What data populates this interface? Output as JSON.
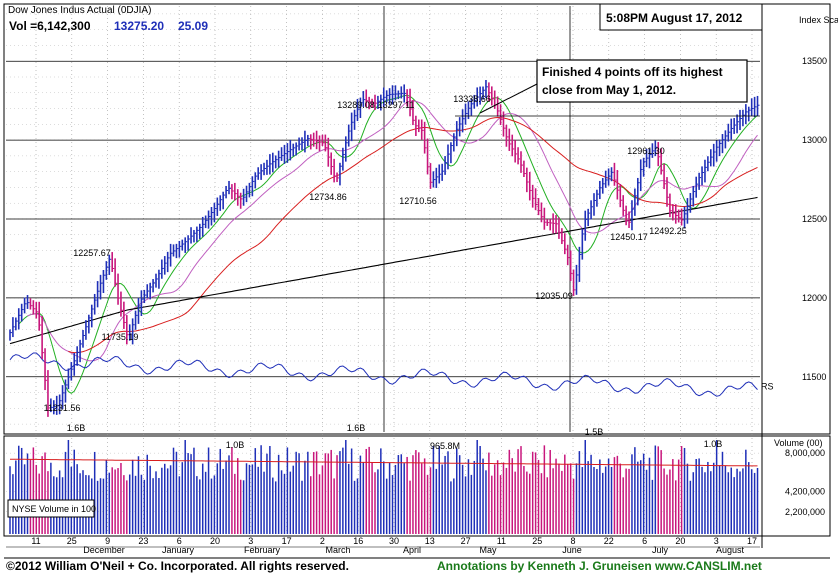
{
  "header": {
    "title": "Dow Jones Indus Actual  (0DJIA)",
    "volume_label": "Vol =6,142,300",
    "last_price": "13275.20",
    "change": "25.09",
    "timestamp": "5:08PM August 17, 2012"
  },
  "annotation": {
    "line1": "Finished 4 points off its highest",
    "line2": "close from May 1, 2012."
  },
  "footer": {
    "copyright": "©2012 William O'Neil + Co. Incorporated. All rights reserved.",
    "credit": "Annotations by Kenneth J. Gruneisen www.CANSLIM.net"
  },
  "colors": {
    "up": "#1f2fb8",
    "down": "#c8167c",
    "ma50": "#d81e1e",
    "ma200": "#000000",
    "ma10": "#22b022",
    "ma21": "#c060c0",
    "rs": "#1f2fb8",
    "credit": "#1a7a1a"
  },
  "chart_data": {
    "type": "bar",
    "title": "Dow Jones Indus Actual  (0DJIA)",
    "price_axis": {
      "label": "Index Scale",
      "ticks": [
        11500,
        12000,
        12500,
        13000,
        13500
      ],
      "tick_labels": [
        "11500",
        "12000",
        "12500",
        "13000",
        "13500"
      ],
      "range": [
        11150,
        13850
      ]
    },
    "x_axis": {
      "tick_labels": [
        "11",
        "25",
        "9",
        "23",
        "6",
        "20",
        "3",
        "17",
        "2",
        "16",
        "30",
        "13",
        "27",
        "11",
        "25",
        "8",
        "22",
        "6",
        "20",
        "3",
        "17"
      ],
      "month_labels": [
        "December",
        "January",
        "February",
        "March",
        "April",
        "May",
        "June",
        "July",
        "August"
      ]
    },
    "price_annotations": [
      "12257.67",
      "11735.19",
      "11231.56",
      "13289.08",
      "13297.11",
      "12734.86",
      "12710.56",
      "13338.66",
      "12035.09",
      "12961.30",
      "12450.17",
      "12492.25"
    ],
    "volume_axis": {
      "label": "Volume (00)",
      "ticks": [
        2200000,
        4200000,
        8000000
      ],
      "tick_labels": [
        "2,200,000",
        "4,200,000",
        "8,000,000"
      ],
      "range": [
        0,
        9300000
      ]
    },
    "volume_annotations": [
      "1.6B",
      "1.0B",
      "1.6B",
      "965.8M",
      "1.5B",
      "1.0B"
    ],
    "volume_legend": "NYSE Volume in 100",
    "rs_label": "RS",
    "series": [
      {
        "name": "Price",
        "points": [
          [
            0,
            11780
          ],
          [
            16,
            11980
          ],
          [
            28,
            11900
          ],
          [
            38,
            11300
          ],
          [
            48,
            11320
          ],
          [
            62,
            11560
          ],
          [
            74,
            11780
          ],
          [
            88,
            12050
          ],
          [
            100,
            12257
          ],
          [
            108,
            12000
          ],
          [
            118,
            11735
          ],
          [
            130,
            11980
          ],
          [
            146,
            12120
          ],
          [
            160,
            12280
          ],
          [
            176,
            12360
          ],
          [
            192,
            12460
          ],
          [
            206,
            12580
          ],
          [
            218,
            12700
          ],
          [
            232,
            12620
          ],
          [
            246,
            12780
          ],
          [
            262,
            12860
          ],
          [
            278,
            12930
          ],
          [
            298,
            13010
          ],
          [
            314,
            12980
          ],
          [
            326,
            12734
          ],
          [
            340,
            13090
          ],
          [
            352,
            13260
          ],
          [
            364,
            13230
          ],
          [
            378,
            13289
          ],
          [
            396,
            13297
          ],
          [
            404,
            13100
          ],
          [
            412,
            13060
          ],
          [
            420,
            12730
          ],
          [
            432,
            12800
          ],
          [
            446,
            13060
          ],
          [
            460,
            13220
          ],
          [
            476,
            13338
          ],
          [
            488,
            13180
          ],
          [
            498,
            12990
          ],
          [
            510,
            12860
          ],
          [
            522,
            12640
          ],
          [
            534,
            12480
          ],
          [
            546,
            12470
          ],
          [
            558,
            12250
          ],
          [
            564,
            12035
          ],
          [
            574,
            12480
          ],
          [
            590,
            12700
          ],
          [
            602,
            12800
          ],
          [
            618,
            12450
          ],
          [
            632,
            12850
          ],
          [
            646,
            12960
          ],
          [
            660,
            12550
          ],
          [
            672,
            12492
          ],
          [
            688,
            12750
          ],
          [
            706,
            12950
          ],
          [
            722,
            13080
          ],
          [
            736,
            13180
          ],
          [
            750,
            13230
          ],
          [
            756,
            13275
          ]
        ]
      },
      {
        "name": "Volume",
        "approx_level": 6500000,
        "peaks": [
          16000000,
          10000000,
          16000000,
          9658000,
          15000000,
          10000000
        ]
      }
    ]
  }
}
